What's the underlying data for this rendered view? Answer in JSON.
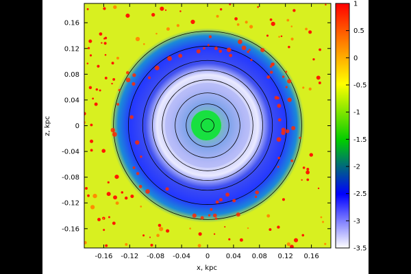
{
  "chart_data": {
    "type": "heatmap",
    "xlabel": "x, kpc",
    "ylabel": "z, kpc",
    "xlim": [
      -0.19,
      0.19
    ],
    "ylim": [
      -0.19,
      0.19
    ],
    "x_ticks": [
      "-0.16",
      "-0.12",
      "-0.08",
      "-0.04",
      "0",
      "0.04",
      "0.08",
      "0.12",
      "0.16"
    ],
    "y_ticks": [
      "0.16",
      "0.12",
      "0.08",
      "0.04",
      "0",
      "-0.04",
      "-0.08",
      "-0.12",
      "-0.16"
    ],
    "colorbar": {
      "ticks": [
        "1",
        "0.5",
        "0",
        "-0.5",
        "-1",
        "-1.5",
        "-2",
        "-2.5",
        "-3",
        "-3.5"
      ],
      "range": [
        -3.5,
        1
      ],
      "colors": [
        "#ffffff",
        "#0000ff",
        "#00cc00",
        "#ffff00",
        "#ff7f00",
        "#ff0000"
      ]
    },
    "contours_kpc": [
      0.01,
      0.033,
      0.05,
      0.07,
      0.085,
      0.1,
      0.122,
      0.145
    ],
    "background_color": "#d8f020"
  }
}
